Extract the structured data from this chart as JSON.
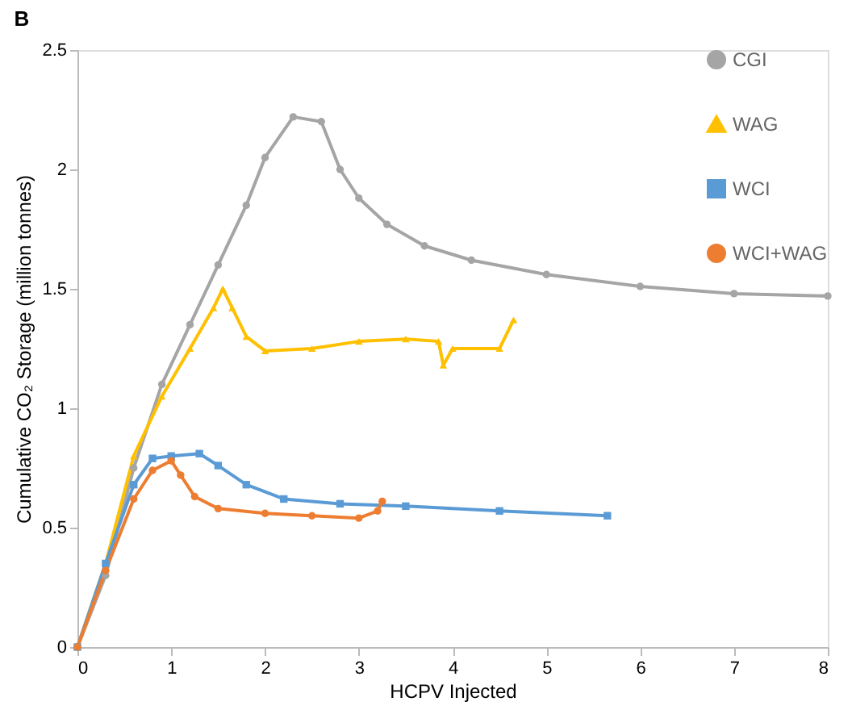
{
  "chart_data": {
    "type": "line",
    "title": "B",
    "xlabel": "HCPV Injected",
    "ylabel": "Cumulative CO₂ Storage (million tonnes)",
    "xlim": [
      0,
      8
    ],
    "xticks": [
      0,
      1,
      2,
      3,
      4,
      5,
      6,
      7,
      8
    ],
    "ylim": [
      0,
      2.5
    ],
    "yticks": [
      0,
      0.5,
      1,
      1.5,
      2,
      2.5
    ],
    "grid": false,
    "legend": "top right",
    "line_style": "solid",
    "series": [
      {
        "name": "CGI",
        "color": "#a5a5a5",
        "marker": "circle",
        "x": [
          0,
          0.3,
          0.6,
          0.9,
          1.2,
          1.5,
          1.8,
          2.0,
          2.3,
          2.6,
          2.8,
          3.0,
          3.3,
          3.7,
          4.2,
          5,
          6,
          7,
          8
        ],
        "values": [
          0,
          0.3,
          0.75,
          1.1,
          1.35,
          1.6,
          1.85,
          2.05,
          2.22,
          2.2,
          2.0,
          1.88,
          1.77,
          1.68,
          1.62,
          1.56,
          1.51,
          1.48,
          1.47
        ]
      },
      {
        "name": "WAG",
        "color": "#ffc000",
        "marker": "triangle",
        "x": [
          0,
          0.3,
          0.6,
          0.9,
          1.2,
          1.45,
          1.55,
          1.65,
          1.8,
          2.0,
          2.5,
          3.0,
          3.5,
          3.85,
          3.9,
          4.0,
          4.5,
          4.65
        ],
        "values": [
          0,
          0.35,
          0.8,
          1.05,
          1.25,
          1.42,
          1.5,
          1.42,
          1.3,
          1.24,
          1.25,
          1.28,
          1.29,
          1.28,
          1.18,
          1.25,
          1.25,
          1.37
        ]
      },
      {
        "name": "WCI",
        "color": "#5b9bd5",
        "marker": "square",
        "x": [
          0,
          0.3,
          0.6,
          0.8,
          1.0,
          1.3,
          1.5,
          1.8,
          2.2,
          2.8,
          3.5,
          4.5,
          5.65
        ],
        "values": [
          0,
          0.35,
          0.68,
          0.79,
          0.8,
          0.81,
          0.76,
          0.68,
          0.62,
          0.6,
          0.59,
          0.57,
          0.55
        ]
      },
      {
        "name": "WCI+WAG",
        "color": "#ed7d31",
        "marker": "circle",
        "x": [
          0,
          0.3,
          0.6,
          0.8,
          1.0,
          1.1,
          1.25,
          1.5,
          2.0,
          2.5,
          3.0,
          3.2,
          3.25
        ],
        "values": [
          0,
          0.32,
          0.62,
          0.74,
          0.78,
          0.72,
          0.63,
          0.58,
          0.56,
          0.55,
          0.54,
          0.57,
          0.61
        ]
      }
    ]
  }
}
